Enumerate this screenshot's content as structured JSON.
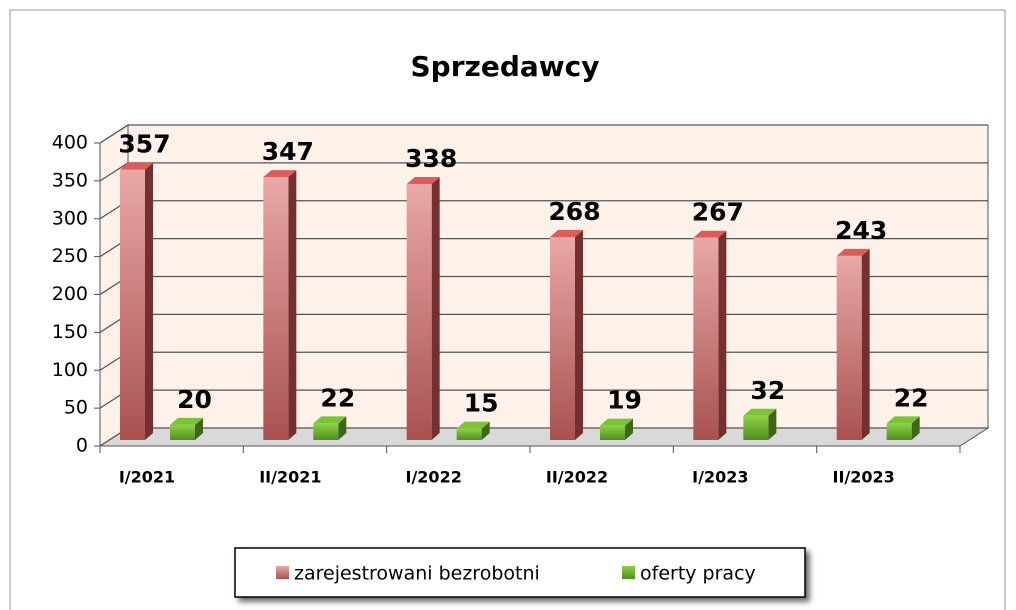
{
  "chart_data": {
    "type": "bar3d",
    "title": "Sprzedawcy",
    "categories": [
      "I/2021",
      "II/2021",
      "I/2022",
      "II/2022",
      "I/2023",
      "II/2023"
    ],
    "series": [
      {
        "name": "zarejestrowani bezrobotni",
        "color": "#c0504d",
        "values": [
          357,
          347,
          338,
          268,
          267,
          243
        ]
      },
      {
        "name": "oferty pracy",
        "color": "#6aaa2e",
        "values": [
          20,
          22,
          15,
          19,
          32,
          22
        ]
      }
    ],
    "ylim": [
      0,
      400
    ],
    "yticks": [
      0,
      50,
      100,
      150,
      200,
      250,
      300,
      350,
      400
    ],
    "grid": true,
    "legend": "bottom"
  }
}
